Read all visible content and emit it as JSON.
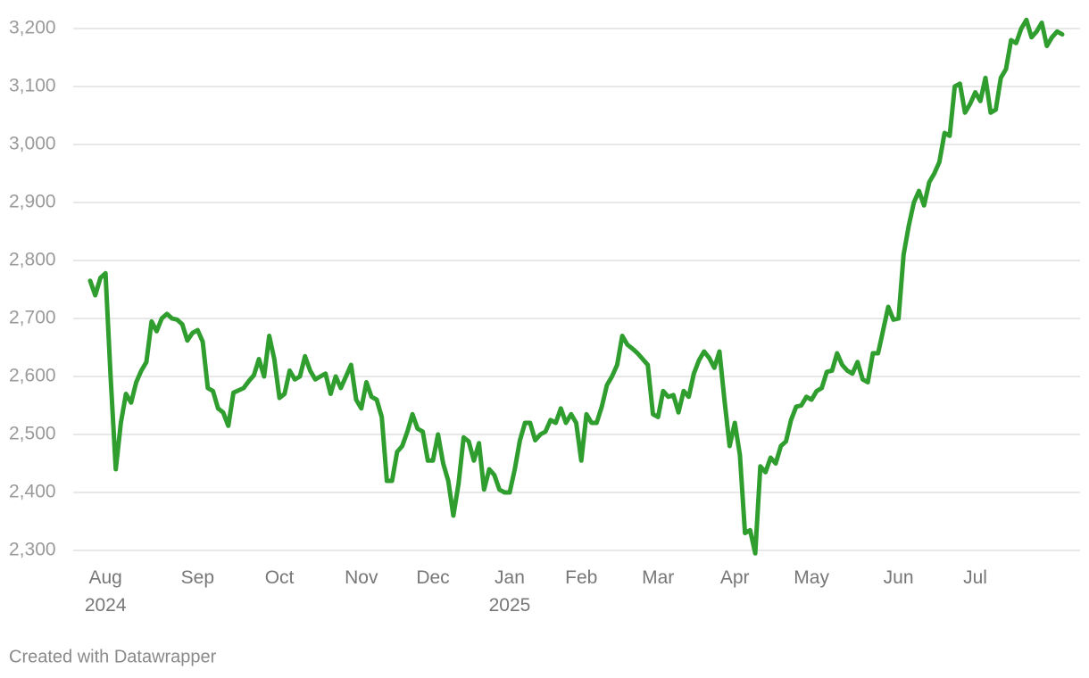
{
  "chart_data": {
    "type": "line",
    "color": "#2f9e2f",
    "grid": true,
    "ylim": [
      2300,
      3200
    ],
    "yticks": [
      {
        "value": 2300,
        "label": "2,300"
      },
      {
        "value": 2400,
        "label": "2,400"
      },
      {
        "value": 2500,
        "label": "2,500"
      },
      {
        "value": 2600,
        "label": "2,600"
      },
      {
        "value": 2700,
        "label": "2,700"
      },
      {
        "value": 2800,
        "label": "2,800"
      },
      {
        "value": 2900,
        "label": "2,900"
      },
      {
        "value": 3000,
        "label": "3,000"
      },
      {
        "value": 3100,
        "label": "3,100"
      },
      {
        "value": 3200,
        "label": "3,200"
      }
    ],
    "categories": [
      null,
      null,
      null,
      "Aug 2024",
      null,
      null,
      null,
      null,
      null,
      null,
      null,
      null,
      null,
      null,
      null,
      null,
      null,
      null,
      null,
      null,
      null,
      "Sep",
      null,
      null,
      null,
      null,
      null,
      null,
      null,
      null,
      null,
      null,
      null,
      null,
      null,
      null,
      null,
      "Oct",
      null,
      null,
      null,
      null,
      null,
      null,
      null,
      null,
      null,
      null,
      null,
      null,
      null,
      null,
      null,
      "Nov",
      null,
      null,
      null,
      null,
      null,
      null,
      null,
      null,
      null,
      null,
      null,
      null,
      null,
      "Dec",
      null,
      null,
      null,
      null,
      null,
      null,
      null,
      null,
      null,
      null,
      null,
      null,
      null,
      null,
      "Jan 2025",
      null,
      null,
      null,
      null,
      null,
      null,
      null,
      null,
      null,
      null,
      null,
      null,
      null,
      "Feb",
      null,
      null,
      null,
      null,
      null,
      null,
      null,
      null,
      null,
      null,
      null,
      null,
      null,
      null,
      "Mar",
      null,
      null,
      null,
      null,
      null,
      null,
      null,
      null,
      null,
      null,
      null,
      null,
      null,
      null,
      "Apr",
      null,
      null,
      null,
      null,
      null,
      null,
      null,
      null,
      null,
      null,
      null,
      null,
      null,
      null,
      "May",
      null,
      null,
      null,
      null,
      null,
      null,
      null,
      null,
      null,
      null,
      null,
      null,
      null,
      null,
      null,
      null,
      "Jun",
      null,
      null,
      null,
      null,
      null,
      null,
      null,
      null,
      null,
      null,
      null,
      null,
      null,
      null,
      "Jul",
      null,
      null,
      null,
      null,
      null,
      null,
      null,
      null,
      null,
      null,
      null,
      null,
      null,
      null,
      null,
      null,
      null
    ],
    "values": [
      2765,
      2740,
      2770,
      2778,
      2600,
      2440,
      2520,
      2570,
      2555,
      2590,
      2610,
      2625,
      2695,
      2678,
      2700,
      2708,
      2700,
      2698,
      2690,
      2662,
      2675,
      2680,
      2660,
      2580,
      2575,
      2545,
      2538,
      2515,
      2572,
      2576,
      2580,
      2592,
      2602,
      2630,
      2600,
      2670,
      2630,
      2563,
      2570,
      2610,
      2595,
      2600,
      2635,
      2610,
      2595,
      2600,
      2605,
      2570,
      2600,
      2580,
      2600,
      2620,
      2560,
      2545,
      2590,
      2565,
      2560,
      2530,
      2420,
      2420,
      2470,
      2480,
      2505,
      2535,
      2510,
      2505,
      2455,
      2455,
      2500,
      2450,
      2420,
      2360,
      2415,
      2495,
      2488,
      2455,
      2485,
      2405,
      2440,
      2430,
      2405,
      2400,
      2400,
      2440,
      2490,
      2520,
      2520,
      2490,
      2500,
      2505,
      2525,
      2520,
      2545,
      2520,
      2535,
      2520,
      2455,
      2535,
      2520,
      2520,
      2548,
      2585,
      2600,
      2620,
      2670,
      2655,
      2648,
      2640,
      2630,
      2620,
      2535,
      2530,
      2575,
      2565,
      2568,
      2538,
      2575,
      2565,
      2605,
      2628,
      2643,
      2632,
      2615,
      2643,
      2558,
      2480,
      2520,
      2465,
      2330,
      2335,
      2295,
      2445,
      2435,
      2460,
      2450,
      2480,
      2488,
      2525,
      2548,
      2550,
      2565,
      2560,
      2575,
      2580,
      2608,
      2610,
      2640,
      2620,
      2610,
      2605,
      2625,
      2595,
      2590,
      2640,
      2640,
      2680,
      2720,
      2698,
      2700,
      2810,
      2860,
      2900,
      2920,
      2895,
      2935,
      2950,
      2970,
      3020,
      3015,
      3100,
      3105,
      3055,
      3070,
      3090,
      3075,
      3115,
      3055,
      3060,
      3115,
      3130,
      3180,
      3175,
      3200,
      3215,
      3185,
      3195,
      3210,
      3170,
      3185,
      3195,
      3190
    ]
  },
  "footer": "Created with Datawrapper"
}
